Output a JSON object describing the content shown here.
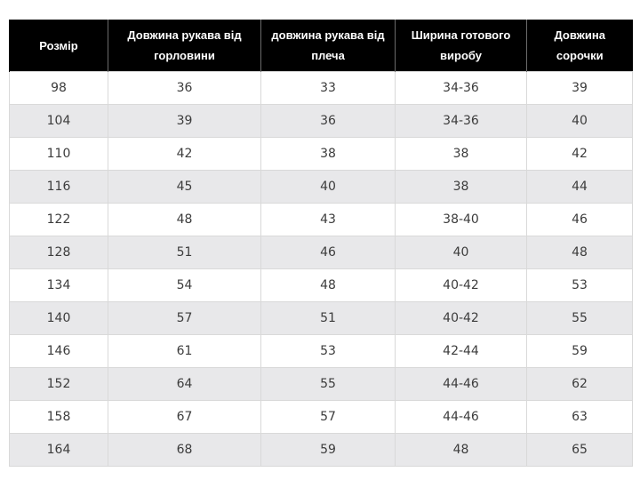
{
  "table": {
    "headers": [
      "Розмір",
      "Довжина рукава від горловини",
      "довжина рукава від плеча",
      "Ширина готового виробу",
      "Довжина сорочки"
    ],
    "rows": [
      [
        "98",
        "36",
        "33",
        "34-36",
        "39"
      ],
      [
        "104",
        "39",
        "36",
        "34-36",
        "40"
      ],
      [
        "110",
        "42",
        "38",
        "38",
        "42"
      ],
      [
        "116",
        "45",
        "40",
        "38",
        "44"
      ],
      [
        "122",
        "48",
        "43",
        "38-40",
        "46"
      ],
      [
        "128",
        "51",
        "46",
        "40",
        "48"
      ],
      [
        "134",
        "54",
        "48",
        "40-42",
        "53"
      ],
      [
        "140",
        "57",
        "51",
        "40-42",
        "55"
      ],
      [
        "146",
        "61",
        "53",
        "42-44",
        "59"
      ],
      [
        "152",
        "64",
        "55",
        "44-46",
        "62"
      ],
      [
        "158",
        "67",
        "57",
        "44-46",
        "63"
      ],
      [
        "164",
        "68",
        "59",
        "48",
        "65"
      ]
    ]
  },
  "colors": {
    "header_bg": "#000000",
    "header_text": "#ffffff",
    "stripe_bg": "#e8e8ea",
    "row_bg": "#ffffff",
    "cell_text": "#3c3c3c"
  }
}
